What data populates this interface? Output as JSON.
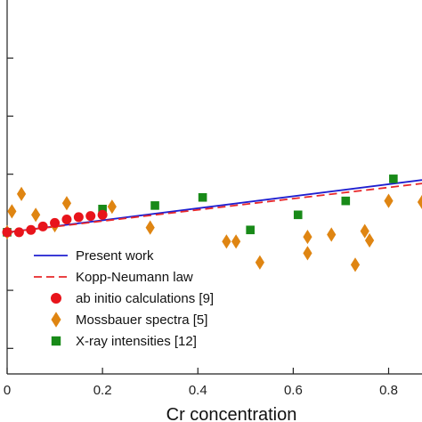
{
  "chart_data": {
    "type": "scatter",
    "xlabel": "Cr concentration",
    "ylabel": "",
    "x_ticks": [
      "0",
      "0.2",
      "0.4",
      "0.6",
      "0.8"
    ],
    "x_tick_values": [
      0,
      0.2,
      0.4,
      0.6,
      0.8
    ],
    "xlim": [
      0,
      0.87
    ],
    "ylim": [
      -0.61,
      1.0
    ],
    "y_tick_values": [
      -0.5,
      -0.25,
      0,
      0.25,
      0.5,
      0.75
    ],
    "grid": false,
    "legend_position": "bottom-left",
    "series": [
      {
        "name": "Present work",
        "kind": "line",
        "style": "solid",
        "color": "#1f1fd0",
        "x": [
          0,
          0.87
        ],
        "y": [
          0,
          0.225
        ]
      },
      {
        "name": "Kopp-Neumann law",
        "kind": "line",
        "style": "dashed",
        "color": "#e8272a",
        "x": [
          0,
          0.87
        ],
        "y": [
          0,
          0.21
        ]
      },
      {
        "name": "ab initio calculations [9]",
        "kind": "scatter",
        "marker": "circle",
        "color": "#e8141b",
        "x": [
          0,
          0.025,
          0.05,
          0.075,
          0.1,
          0.125,
          0.15,
          0.175,
          0.2
        ],
        "y": [
          0,
          0.0,
          0.01,
          0.025,
          0.04,
          0.055,
          0.065,
          0.07,
          0.075
        ]
      },
      {
        "name": "Mossbauer spectra [5]",
        "kind": "scatter",
        "marker": "diamond",
        "color": "#df8512",
        "x": [
          0,
          0.01,
          0.03,
          0.06,
          0.1,
          0.125,
          0.22,
          0.3,
          0.46,
          0.48,
          0.53,
          0.63,
          0.63,
          0.68,
          0.73,
          0.75,
          0.76,
          0.8,
          0.87
        ],
        "y": [
          0,
          0.09,
          0.165,
          0.075,
          0.03,
          0.125,
          0.11,
          0.02,
          -0.04,
          -0.04,
          -0.13,
          -0.02,
          -0.09,
          -0.01,
          -0.14,
          0.005,
          -0.035,
          0.135,
          0.13
        ]
      },
      {
        "name": "X-ray intensities [12]",
        "kind": "scatter",
        "marker": "square",
        "color": "#188a18",
        "x": [
          0,
          0.2,
          0.31,
          0.41,
          0.51,
          0.61,
          0.71,
          0.81
        ],
        "y": [
          0,
          0.1,
          0.115,
          0.15,
          0.01,
          0.075,
          0.135,
          0.23
        ]
      }
    ]
  }
}
